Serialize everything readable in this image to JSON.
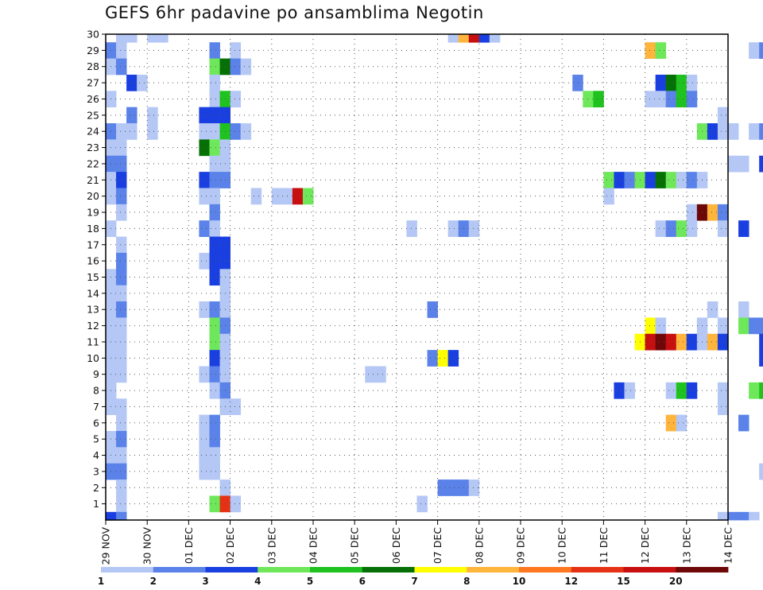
{
  "chart_data": {
    "type": "heatmap",
    "title": "GEFS 6hr padavine po ansamblima Negotin",
    "xlabel": "",
    "ylabel": "",
    "x_ticks": [
      "29 NOV",
      "30 NOV",
      "01 DEC",
      "02 DEC",
      "03 DEC",
      "04 DEC",
      "05 DEC",
      "06 DEC",
      "07 DEC",
      "08 DEC",
      "09 DEC",
      "10 DEC",
      "11 DEC",
      "12 DEC",
      "13 DEC",
      "14 DEC"
    ],
    "xlim": [
      "29 NOV",
      "14 DEC"
    ],
    "steps_per_day": 4,
    "members": [
      1,
      2,
      3,
      4,
      5,
      6,
      7,
      8,
      9,
      10,
      11,
      12,
      13,
      14,
      15,
      16,
      17,
      18,
      19,
      20,
      21,
      22,
      23,
      24,
      25,
      26,
      27,
      28,
      29,
      30
    ],
    "ylim": [
      0,
      30
    ],
    "grid": true,
    "colorbar": {
      "labels": [
        "1",
        "2",
        "3",
        "4",
        "5",
        "6",
        "7",
        "8",
        "10",
        "12",
        "15",
        "20"
      ],
      "bounds": [
        1,
        2,
        3,
        4,
        5,
        6,
        7,
        8,
        10,
        12,
        15,
        20
      ],
      "colors": [
        "#b4c7f5",
        "#5a82e8",
        "#1a3fe0",
        "#6ee85a",
        "#1fc21f",
        "#067006",
        "#ffff00",
        "#ffb43c",
        "#ff7820",
        "#e63214",
        "#c80f0f",
        "#6e0808"
      ]
    },
    "cells": [
      {
        "member": 30,
        "values": [
          [
            1,
            1
          ],
          [
            2,
            1
          ],
          [
            4,
            1
          ],
          [
            5,
            1
          ],
          [
            33,
            1
          ],
          [
            34,
            8
          ],
          [
            35,
            15
          ],
          [
            36,
            3
          ],
          [
            37,
            1
          ]
        ]
      },
      {
        "member": 29,
        "values": [
          [
            0,
            2
          ],
          [
            1,
            1
          ],
          [
            10,
            2
          ],
          [
            12,
            1
          ],
          [
            52,
            8
          ],
          [
            53,
            4
          ],
          [
            62,
            1
          ],
          [
            63,
            2
          ]
        ]
      },
      {
        "member": 28,
        "values": [
          [
            0,
            1
          ],
          [
            1,
            2
          ],
          [
            10,
            4
          ],
          [
            11,
            6
          ],
          [
            12,
            2
          ],
          [
            13,
            1
          ]
        ]
      },
      {
        "member": 27,
        "values": [
          [
            2,
            3
          ],
          [
            3,
            1
          ],
          [
            10,
            1
          ],
          [
            45,
            2
          ],
          [
            53,
            3
          ],
          [
            54,
            6
          ],
          [
            55,
            5
          ],
          [
            56,
            1
          ]
        ]
      },
      {
        "member": 26,
        "values": [
          [
            0,
            1
          ],
          [
            10,
            1
          ],
          [
            11,
            5
          ],
          [
            12,
            1
          ],
          [
            46,
            4
          ],
          [
            47,
            5
          ],
          [
            52,
            1
          ],
          [
            53,
            1
          ],
          [
            54,
            2
          ],
          [
            55,
            5
          ],
          [
            56,
            2
          ],
          [
            67,
            1
          ],
          [
            68,
            1
          ],
          [
            69,
            4
          ]
        ]
      },
      {
        "member": 25,
        "values": [
          [
            2,
            2
          ],
          [
            4,
            1
          ],
          [
            9,
            3
          ],
          [
            10,
            3
          ],
          [
            11,
            3
          ],
          [
            59,
            1
          ],
          [
            67,
            1
          ],
          [
            69,
            1
          ],
          [
            73,
            3
          ],
          [
            76,
            1
          ],
          [
            78,
            4
          ],
          [
            79,
            2
          ],
          [
            80,
            1
          ],
          [
            82,
            3
          ],
          [
            83,
            3
          ],
          [
            84,
            3
          ],
          [
            85,
            2
          ]
        ]
      },
      {
        "member": 24,
        "values": [
          [
            0,
            2
          ],
          [
            1,
            1
          ],
          [
            2,
            1
          ],
          [
            4,
            1
          ],
          [
            9,
            1
          ],
          [
            10,
            1
          ],
          [
            11,
            5
          ],
          [
            12,
            2
          ],
          [
            13,
            1
          ],
          [
            57,
            4
          ],
          [
            58,
            3
          ],
          [
            59,
            1
          ],
          [
            60,
            1
          ],
          [
            62,
            1
          ],
          [
            63,
            2
          ],
          [
            64,
            8
          ],
          [
            65,
            8
          ],
          [
            66,
            3
          ],
          [
            67,
            2
          ],
          [
            72,
            1
          ]
        ]
      },
      {
        "member": 23,
        "values": [
          [
            0,
            1
          ],
          [
            1,
            1
          ],
          [
            9,
            6
          ],
          [
            10,
            4
          ],
          [
            11,
            1
          ]
        ]
      },
      {
        "member": 22,
        "values": [
          [
            0,
            2
          ],
          [
            1,
            2
          ],
          [
            10,
            1
          ],
          [
            11,
            1
          ],
          [
            60,
            1
          ],
          [
            61,
            1
          ],
          [
            63,
            3
          ],
          [
            66,
            1
          ],
          [
            67,
            1
          ]
        ]
      },
      {
        "member": 21,
        "values": [
          [
            0,
            1
          ],
          [
            1,
            3
          ],
          [
            9,
            3
          ],
          [
            10,
            2
          ],
          [
            11,
            2
          ],
          [
            48,
            4
          ],
          [
            49,
            3
          ],
          [
            50,
            2
          ],
          [
            51,
            4
          ],
          [
            52,
            3
          ],
          [
            53,
            6
          ],
          [
            54,
            4
          ],
          [
            55,
            1
          ],
          [
            56,
            2
          ],
          [
            57,
            1
          ]
        ]
      },
      {
        "member": 20,
        "values": [
          [
            0,
            1
          ],
          [
            1,
            2
          ],
          [
            9,
            1
          ],
          [
            10,
            1
          ],
          [
            14,
            1
          ],
          [
            16,
            1
          ],
          [
            17,
            1
          ],
          [
            18,
            15
          ],
          [
            19,
            4
          ],
          [
            48,
            1
          ],
          [
            66,
            1
          ]
        ]
      },
      {
        "member": 19,
        "values": [
          [
            1,
            1
          ],
          [
            10,
            2
          ],
          [
            56,
            1
          ],
          [
            57,
            20
          ],
          [
            58,
            8
          ],
          [
            59,
            2
          ]
        ]
      },
      {
        "member": 18,
        "values": [
          [
            0,
            1
          ],
          [
            9,
            2
          ],
          [
            10,
            1
          ],
          [
            29,
            1
          ],
          [
            33,
            1
          ],
          [
            34,
            2
          ],
          [
            35,
            1
          ],
          [
            53,
            1
          ],
          [
            54,
            2
          ],
          [
            55,
            4
          ],
          [
            56,
            1
          ],
          [
            59,
            1
          ],
          [
            61,
            3
          ]
        ]
      },
      {
        "member": 17,
        "values": [
          [
            1,
            1
          ],
          [
            10,
            3
          ],
          [
            11,
            3
          ]
        ]
      },
      {
        "member": 16,
        "values": [
          [
            1,
            2
          ],
          [
            9,
            1
          ],
          [
            10,
            3
          ],
          [
            11,
            3
          ],
          [
            64,
            5
          ],
          [
            65,
            8
          ],
          [
            66,
            1
          ]
        ]
      },
      {
        "member": 15,
        "values": [
          [
            0,
            1
          ],
          [
            1,
            2
          ],
          [
            10,
            3
          ],
          [
            11,
            1
          ],
          [
            64,
            2
          ],
          [
            65,
            1
          ]
        ]
      },
      {
        "member": 14,
        "values": [
          [
            0,
            1
          ],
          [
            1,
            1
          ],
          [
            11,
            1
          ]
        ]
      },
      {
        "member": 13,
        "values": [
          [
            0,
            1
          ],
          [
            1,
            2
          ],
          [
            9,
            1
          ],
          [
            10,
            2
          ],
          [
            11,
            1
          ],
          [
            31,
            2
          ],
          [
            58,
            1
          ],
          [
            61,
            1
          ],
          [
            64,
            2
          ],
          [
            65,
            1
          ],
          [
            71,
            1
          ]
        ]
      },
      {
        "member": 12,
        "values": [
          [
            0,
            1
          ],
          [
            1,
            1
          ],
          [
            10,
            4
          ],
          [
            11,
            2
          ],
          [
            52,
            7
          ],
          [
            53,
            1
          ],
          [
            57,
            1
          ],
          [
            59,
            1
          ],
          [
            61,
            4
          ],
          [
            62,
            2
          ],
          [
            63,
            2
          ]
        ]
      },
      {
        "member": 11,
        "values": [
          [
            0,
            1
          ],
          [
            1,
            1
          ],
          [
            10,
            4
          ],
          [
            11,
            1
          ],
          [
            51,
            7
          ],
          [
            52,
            15
          ],
          [
            53,
            20
          ],
          [
            54,
            15
          ],
          [
            55,
            8
          ],
          [
            56,
            3
          ],
          [
            57,
            1
          ],
          [
            58,
            8
          ],
          [
            59,
            3
          ],
          [
            63,
            3
          ],
          [
            64,
            6
          ],
          [
            65,
            6
          ],
          [
            71,
            1
          ]
        ]
      },
      {
        "member": 10,
        "values": [
          [
            0,
            1
          ],
          [
            1,
            1
          ],
          [
            10,
            3
          ],
          [
            11,
            1
          ],
          [
            31,
            2
          ],
          [
            32,
            7
          ],
          [
            33,
            3
          ],
          [
            63,
            3
          ]
        ]
      },
      {
        "member": 9,
        "values": [
          [
            0,
            1
          ],
          [
            1,
            1
          ],
          [
            9,
            1
          ],
          [
            10,
            2
          ],
          [
            11,
            1
          ],
          [
            25,
            1
          ],
          [
            26,
            1
          ],
          [
            69,
            1
          ],
          [
            72,
            1
          ]
        ]
      },
      {
        "member": 8,
        "values": [
          [
            0,
            1
          ],
          [
            10,
            1
          ],
          [
            11,
            2
          ],
          [
            49,
            3
          ],
          [
            50,
            1
          ],
          [
            54,
            1
          ],
          [
            55,
            5
          ],
          [
            56,
            3
          ],
          [
            59,
            1
          ],
          [
            62,
            4
          ],
          [
            63,
            5
          ],
          [
            64,
            7
          ],
          [
            65,
            5
          ],
          [
            66,
            6
          ],
          [
            67,
            2
          ]
        ]
      },
      {
        "member": 7,
        "values": [
          [
            0,
            1
          ],
          [
            1,
            1
          ],
          [
            11,
            1
          ],
          [
            12,
            1
          ],
          [
            59,
            1
          ],
          [
            68,
            1
          ],
          [
            70,
            1
          ],
          [
            71,
            6
          ]
        ]
      },
      {
        "member": 6,
        "values": [
          [
            1,
            1
          ],
          [
            9,
            1
          ],
          [
            10,
            2
          ],
          [
            54,
            8
          ],
          [
            55,
            1
          ],
          [
            61,
            2
          ]
        ]
      },
      {
        "member": 5,
        "values": [
          [
            0,
            1
          ],
          [
            1,
            2
          ],
          [
            9,
            1
          ],
          [
            10,
            2
          ]
        ]
      },
      {
        "member": 4,
        "values": [
          [
            0,
            1
          ],
          [
            1,
            1
          ],
          [
            9,
            1
          ],
          [
            10,
            1
          ],
          [
            69,
            1
          ],
          [
            70,
            2
          ]
        ]
      },
      {
        "member": 3,
        "values": [
          [
            0,
            2
          ],
          [
            1,
            2
          ],
          [
            9,
            1
          ],
          [
            10,
            1
          ],
          [
            63,
            1
          ]
        ]
      },
      {
        "member": 2,
        "values": [
          [
            1,
            1
          ],
          [
            11,
            1
          ],
          [
            32,
            2
          ],
          [
            33,
            2
          ],
          [
            34,
            2
          ],
          [
            35,
            1
          ],
          [
            66,
            15
          ],
          [
            67,
            8
          ],
          [
            69,
            1
          ]
        ]
      },
      {
        "member": 1,
        "values": [
          [
            1,
            1
          ],
          [
            10,
            4
          ],
          [
            11,
            12
          ],
          [
            12,
            1
          ],
          [
            30,
            1
          ]
        ]
      },
      {
        "member": 0,
        "values": [
          [
            0,
            3
          ],
          [
            1,
            2
          ],
          [
            59,
            1
          ],
          [
            60,
            2
          ],
          [
            61,
            2
          ],
          [
            62,
            1
          ]
        ]
      }
    ]
  }
}
